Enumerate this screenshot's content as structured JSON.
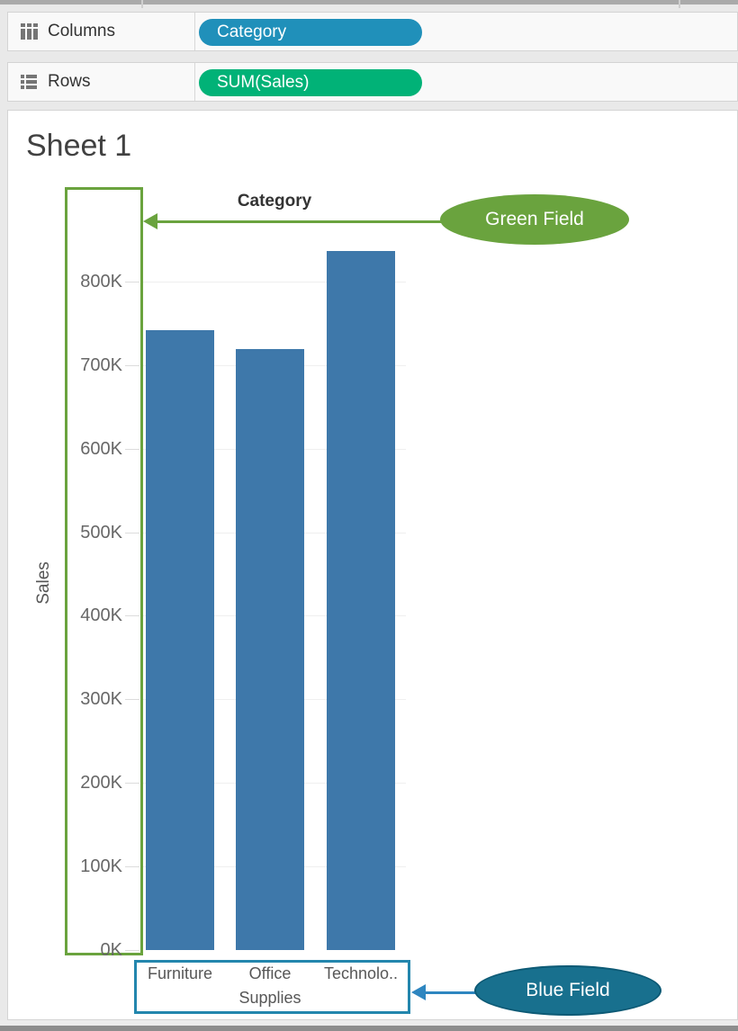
{
  "shelves": {
    "columns": {
      "label": "Columns",
      "pill": {
        "label": "Category",
        "color": "#2090ba"
      }
    },
    "rows": {
      "label": "Rows",
      "pill": {
        "label": "SUM(Sales)",
        "color": "#01b277"
      }
    }
  },
  "sheet": {
    "title": "Sheet 1"
  },
  "chart_data": {
    "type": "bar",
    "title": "Sheet 1",
    "column_header": "Category",
    "xlabel": "Category",
    "ylabel": "Sales",
    "categories": [
      "Furniture",
      "Office Supplies",
      "Technology"
    ],
    "values": [
      742000,
      719000,
      836000
    ],
    "bar_color": "#3e78aa",
    "ylim": [
      0,
      880000
    ],
    "grid": true,
    "legend": "none",
    "yticks": [
      {
        "label": "800K",
        "value": 800000
      },
      {
        "label": "700K",
        "value": 700000
      },
      {
        "label": "600K",
        "value": 600000
      },
      {
        "label": "500K",
        "value": 500000
      },
      {
        "label": "400K",
        "value": 400000
      },
      {
        "label": "300K",
        "value": 300000
      },
      {
        "label": "200K",
        "value": 200000
      },
      {
        "label": "100K",
        "value": 100000
      },
      {
        "label": "0K",
        "value": 0
      }
    ],
    "x_tick_display": [
      {
        "lines": [
          "Furniture"
        ]
      },
      {
        "lines": [
          "Office",
          "Supplies"
        ]
      },
      {
        "lines": [
          "Technolo.."
        ]
      }
    ]
  },
  "annotations": {
    "green_field": {
      "label": "Green Field",
      "fill": "#6aa33e"
    },
    "blue_field": {
      "label": "Blue Field",
      "fill": "#18708e",
      "stroke": "#0d5a75",
      "arrow_color": "#2e86c0",
      "box_color": "#2386ad"
    }
  }
}
